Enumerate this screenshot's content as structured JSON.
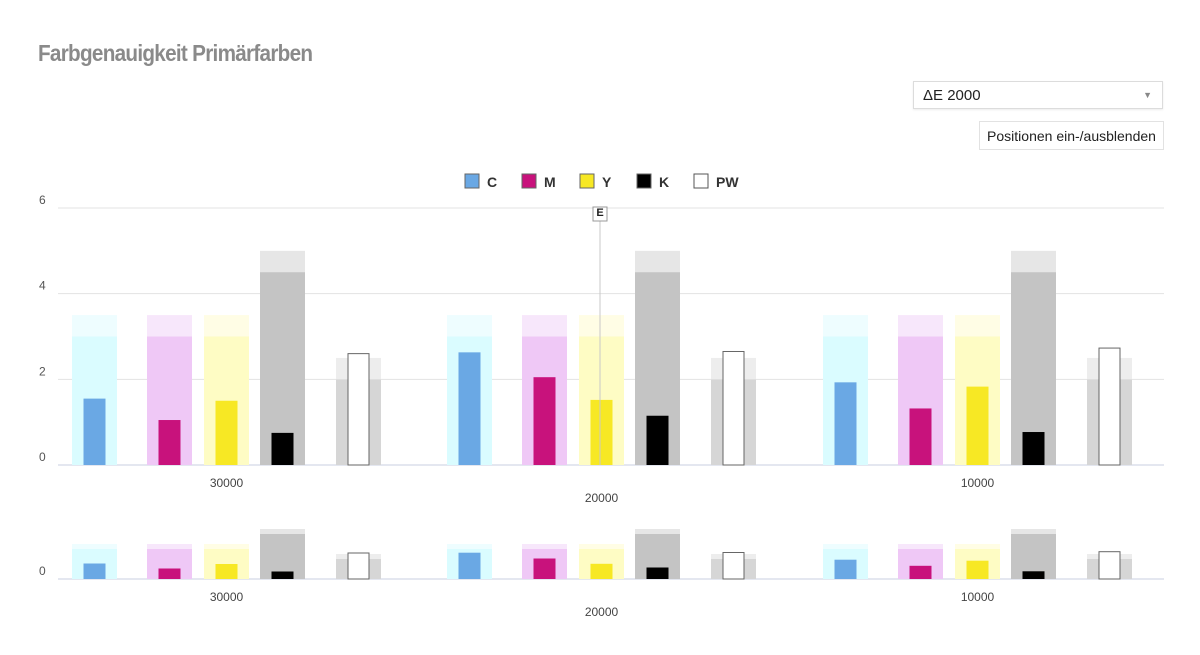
{
  "title": "Farbgenauigkeit Primärfarben",
  "select": {
    "value": "ΔE 2000",
    "arrow_icon": "triangle-down-icon"
  },
  "toggle_button": "Positionen ein-/ausblenden",
  "tooltip": {
    "label": "E"
  },
  "chart_data": {
    "type": "bar",
    "y_ticks": [
      0,
      2,
      4,
      6
    ],
    "ylim": [
      0,
      6
    ],
    "legend": [
      {
        "name": "C",
        "color": "#6aa8e4"
      },
      {
        "name": "M",
        "color": "#c8127c"
      },
      {
        "name": "Y",
        "color": "#f7e824"
      },
      {
        "name": "K",
        "color": "#000000"
      },
      {
        "name": "PW",
        "color": "#ffffff"
      }
    ],
    "categories": [
      "30000",
      "20000",
      "10000"
    ],
    "category_labels_row1": [
      "30000",
      "",
      "10000"
    ],
    "category_labels_row2": [
      "",
      "20000",
      ""
    ],
    "tolerance_bands": [
      {
        "name": "C",
        "inner": 3.0,
        "outer": 3.5,
        "inner_color": "#dafcff",
        "outer_color": "#eefdff"
      },
      {
        "name": "M",
        "inner": 3.0,
        "outer": 3.5,
        "inner_color": "#efc8f6",
        "outer_color": "#f7e7fb"
      },
      {
        "name": "Y",
        "inner": 3.0,
        "outer": 3.5,
        "inner_color": "#fefcc4",
        "outer_color": "#fffde5"
      },
      {
        "name": "K",
        "inner": 4.5,
        "outer": 5.0,
        "inner_color": "#c4c4c4",
        "outer_color": "#e6e6e6"
      },
      {
        "name": "PW",
        "inner": 2.0,
        "outer": 2.5,
        "inner_color": "#d6d6d6",
        "outer_color": "#ededed"
      }
    ],
    "series": [
      {
        "name": "C",
        "values": [
          1.55,
          2.63,
          1.93
        ]
      },
      {
        "name": "M",
        "values": [
          1.05,
          2.05,
          1.32
        ]
      },
      {
        "name": "Y",
        "values": [
          1.5,
          1.52,
          1.83
        ]
      },
      {
        "name": "K",
        "values": [
          0.75,
          1.15,
          0.77
        ]
      },
      {
        "name": "PW",
        "values": [
          2.6,
          2.65,
          2.73
        ]
      }
    ],
    "navigator": {
      "y_ticks": [
        0
      ]
    }
  }
}
